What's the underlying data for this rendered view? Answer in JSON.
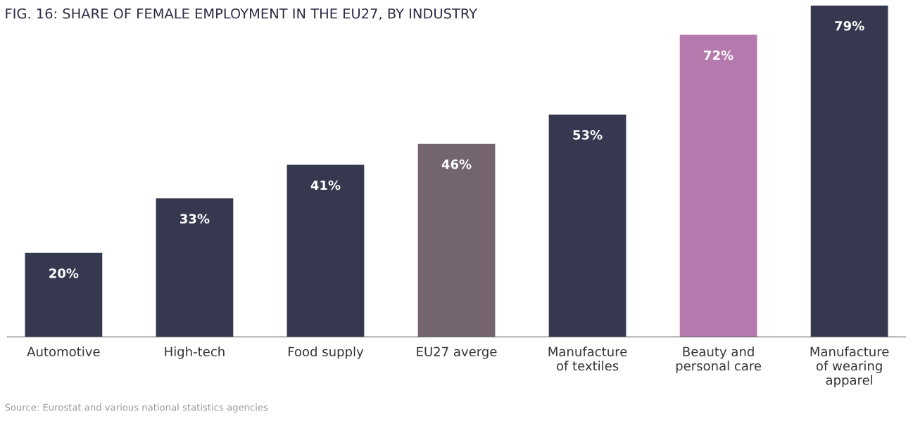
{
  "chart_data": {
    "type": "bar",
    "title": "FIG. 16: SHARE OF FEMALE EMPLOYMENT IN THE EU27, BY INDUSTRY",
    "categories": [
      "Automotive",
      "High-tech",
      "Food supply",
      "EU27 averge",
      "Manufacture\nof textiles",
      "Beauty and\npersonal care",
      "Manufacture\nof wearing\napparel"
    ],
    "values": [
      20,
      33,
      41,
      46,
      53,
      72,
      79
    ],
    "value_labels": [
      "20%",
      "33%",
      "41%",
      "46%",
      "53%",
      "72%",
      "79%"
    ],
    "colors": [
      "#363850",
      "#363850",
      "#363850",
      "#736470",
      "#363850",
      "#b479ad",
      "#363850"
    ],
    "grid": false,
    "annotations": [
      "Source: Eurostat and various national statistics agencies"
    ]
  }
}
